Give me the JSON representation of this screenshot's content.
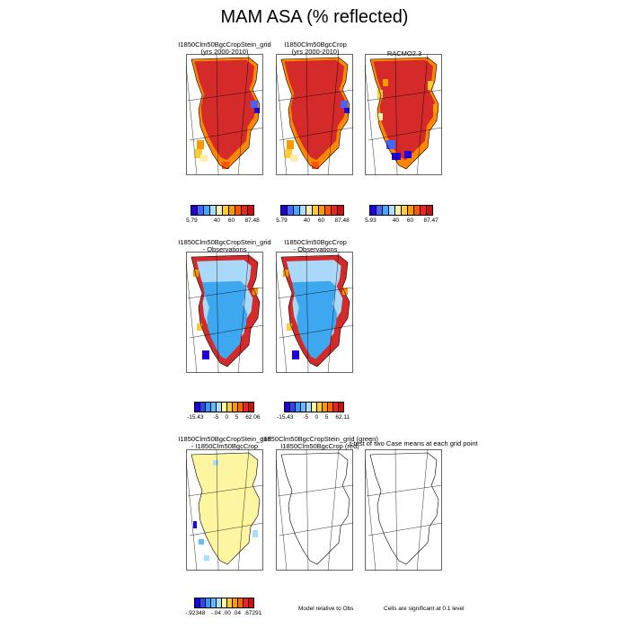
{
  "figure": {
    "title": "MAM ASA (% reflected)"
  },
  "panels": [
    {
      "id": "p1",
      "title_lines": [
        "I1850Clm50BgcCropStein_grid",
        "(yrs 2000-2010)"
      ],
      "fill": "abs"
    },
    {
      "id": "p2",
      "title_lines": [
        "I1850Clm50BgcCrop",
        "(yrs 2000-2010)"
      ],
      "fill": "abs"
    },
    {
      "id": "p3",
      "title_lines": [
        "RACMO2.3",
        ""
      ],
      "fill": "abs3"
    },
    {
      "id": "p4",
      "title_lines": [
        "I1850Clm50BgcCropStein_grid",
        "- Observations"
      ],
      "fill": "diff"
    },
    {
      "id": "p5",
      "title_lines": [
        "I1850Clm50BgcCrop",
        "- Observations"
      ],
      "fill": "diff"
    },
    {
      "id": "p6",
      "title_lines": [
        "I1850Clm50BgcCropStein_grid",
        "- I1850Clm50BgcCrop"
      ],
      "fill": "case"
    },
    {
      "id": "p7",
      "title_lines": [
        "I1850Clm50BgcCropStein_grid (green)",
        "I1850Clm50BgcCrop (red)"
      ],
      "fill": "none"
    },
    {
      "id": "p8",
      "title_lines": [
        "t-test of two Case means at each grid point",
        ""
      ],
      "fill": "none"
    }
  ],
  "colorbars": [
    {
      "id": "cb1",
      "labels": [
        "5.79",
        "40",
        "60",
        "87.48"
      ]
    },
    {
      "id": "cb2",
      "labels": [
        "5.79",
        "40",
        "60",
        "87.48"
      ]
    },
    {
      "id": "cb3",
      "labels": [
        "5.93",
        "40",
        "60",
        "87.47"
      ]
    },
    {
      "id": "cb4",
      "labels": [
        "-15.43",
        "-5",
        "0",
        "5",
        "62.06"
      ]
    },
    {
      "id": "cb5",
      "labels": [
        "-15.43",
        "-5",
        "0",
        "5",
        "62.11"
      ]
    },
    {
      "id": "cb6",
      "labels": [
        "-.92348",
        "-.04",
        ".00",
        ".04",
        ".67291"
      ]
    }
  ],
  "notes": {
    "model_relative": "Model relative to Obs",
    "significance": "Cells are significant at 0.1 level"
  },
  "colors": {
    "abs": [
      "#2200dd",
      "#4466ff",
      "#44aaff",
      "#aaddff",
      "#ffeeaa",
      "#ffcc33",
      "#ff9900",
      "#ff5500",
      "#ee2222",
      "#cc1111"
    ],
    "diff": [
      "#2200dd",
      "#3344ee",
      "#3399ff",
      "#66bbff",
      "#aaddff",
      "#ffff99",
      "#ffcc33",
      "#ff9900",
      "#ff6600",
      "#ee2222",
      "#cc1111"
    ],
    "main_red": "#d42a2a",
    "light_blue": "#aad8f8",
    "mid_blue": "#3da8f0",
    "case_yellow": "#fdf5a0"
  },
  "chart_data": {
    "type": "heatmap",
    "title": "MAM ASA (% reflected)",
    "grids": [
      {
        "panel": "I1850Clm50BgcCropStein_grid (yrs 2000-2010)",
        "range": [
          5.79,
          87.48
        ],
        "colorbar_ticks": [
          5.79,
          40,
          60,
          87.48
        ]
      },
      {
        "panel": "I1850Clm50BgcCrop (yrs 2000-2010)",
        "range": [
          5.79,
          87.48
        ],
        "colorbar_ticks": [
          5.79,
          40,
          60,
          87.48
        ]
      },
      {
        "panel": "RACMO2.3",
        "range": [
          5.93,
          87.47
        ],
        "colorbar_ticks": [
          5.93,
          40,
          60,
          87.47
        ]
      },
      {
        "panel": "I1850Clm50BgcCropStein_grid - Observations",
        "range": [
          -15.43,
          62.06
        ],
        "colorbar_ticks": [
          -15.43,
          -5,
          0,
          5,
          62.06
        ]
      },
      {
        "panel": "I1850Clm50BgcCrop - Observations",
        "range": [
          -15.43,
          62.11
        ],
        "colorbar_ticks": [
          -15.43,
          -5,
          0,
          5,
          62.11
        ]
      },
      {
        "panel": "I1850Clm50BgcCropStein_grid - I1850Clm50BgcCrop",
        "range": [
          -0.92348,
          0.67291
        ],
        "colorbar_ticks": [
          -0.92348,
          -0.04,
          0.0,
          0.04,
          0.67291
        ]
      }
    ]
  }
}
